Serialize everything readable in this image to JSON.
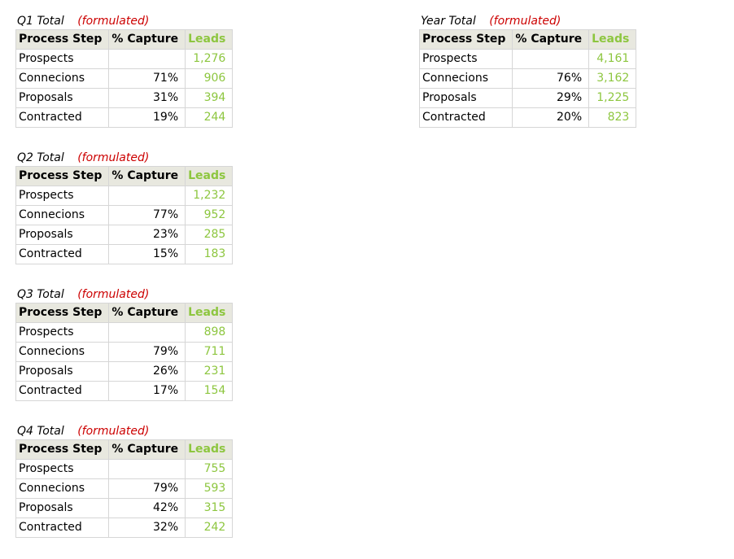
{
  "colors": {
    "note": "#cc0000",
    "leads": "#8dc63f",
    "header_bg": "#e8e8df",
    "grid": "#d6d6d6"
  },
  "tables": {
    "q1": {
      "title": "Q1 Total",
      "note": "(formulated)",
      "headers": [
        "Process Step",
        "% Capture",
        "Leads"
      ],
      "rows": [
        {
          "step": "Prospects",
          "capture": "",
          "leads": "1,276"
        },
        {
          "step": "Connecions",
          "capture": "71%",
          "leads": "906"
        },
        {
          "step": "Proposals",
          "capture": "31%",
          "leads": "394"
        },
        {
          "step": "Contracted",
          "capture": "19%",
          "leads": "244"
        }
      ]
    },
    "year": {
      "title": "Year Total",
      "note": "(formulated)",
      "headers": [
        "Process Step",
        "% Capture",
        "Leads"
      ],
      "rows": [
        {
          "step": "Prospects",
          "capture": "",
          "leads": "4,161"
        },
        {
          "step": "Connecions",
          "capture": "76%",
          "leads": "3,162"
        },
        {
          "step": "Proposals",
          "capture": "29%",
          "leads": "1,225"
        },
        {
          "step": "Contracted",
          "capture": "20%",
          "leads": "823"
        }
      ]
    },
    "q2": {
      "title": "Q2 Total",
      "note": "(formulated)",
      "headers": [
        "Process Step",
        "% Capture",
        "Leads"
      ],
      "rows": [
        {
          "step": "Prospects",
          "capture": "",
          "leads": "1,232"
        },
        {
          "step": "Connecions",
          "capture": "77%",
          "leads": "952"
        },
        {
          "step": "Proposals",
          "capture": "23%",
          "leads": "285"
        },
        {
          "step": "Contracted",
          "capture": "15%",
          "leads": "183"
        }
      ]
    },
    "q3": {
      "title": "Q3 Total",
      "note": "(formulated)",
      "headers": [
        "Process Step",
        "% Capture",
        "Leads"
      ],
      "rows": [
        {
          "step": "Prospects",
          "capture": "",
          "leads": "898"
        },
        {
          "step": "Connecions",
          "capture": "79%",
          "leads": "711"
        },
        {
          "step": "Proposals",
          "capture": "26%",
          "leads": "231"
        },
        {
          "step": "Contracted",
          "capture": "17%",
          "leads": "154"
        }
      ]
    },
    "q4": {
      "title": "Q4 Total",
      "note": "(formulated)",
      "headers": [
        "Process Step",
        "% Capture",
        "Leads"
      ],
      "rows": [
        {
          "step": "Prospects",
          "capture": "",
          "leads": "755"
        },
        {
          "step": "Connecions",
          "capture": "79%",
          "leads": "593"
        },
        {
          "step": "Proposals",
          "capture": "42%",
          "leads": "315"
        },
        {
          "step": "Contracted",
          "capture": "32%",
          "leads": "242"
        }
      ]
    }
  }
}
